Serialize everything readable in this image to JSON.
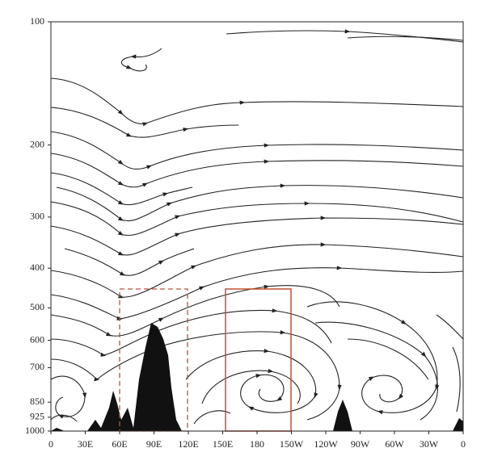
{
  "chart_data": {
    "type": "streamline",
    "yscale": "log",
    "ylim": [
      1000,
      100
    ],
    "yticks": [
      100,
      200,
      300,
      400,
      500,
      600,
      700,
      850,
      925,
      1000
    ],
    "xlim": [
      0,
      360
    ],
    "xticks": [
      0,
      {
        "value": 30,
        "label": "30E"
      },
      {
        "value": 60,
        "label": "60E"
      },
      {
        "value": 90,
        "label": "90E"
      },
      {
        "value": 120,
        "label": "120E"
      },
      {
        "value": 150,
        "label": "150E"
      },
      180,
      {
        "value": 210,
        "label": "150W"
      },
      {
        "value": 240,
        "label": "120W"
      },
      {
        "value": 270,
        "label": "90W"
      },
      {
        "value": 300,
        "label": "60W"
      },
      {
        "value": 330,
        "label": "30W"
      },
      {
        "value": 360,
        "label": "0"
      }
    ]
  }
}
